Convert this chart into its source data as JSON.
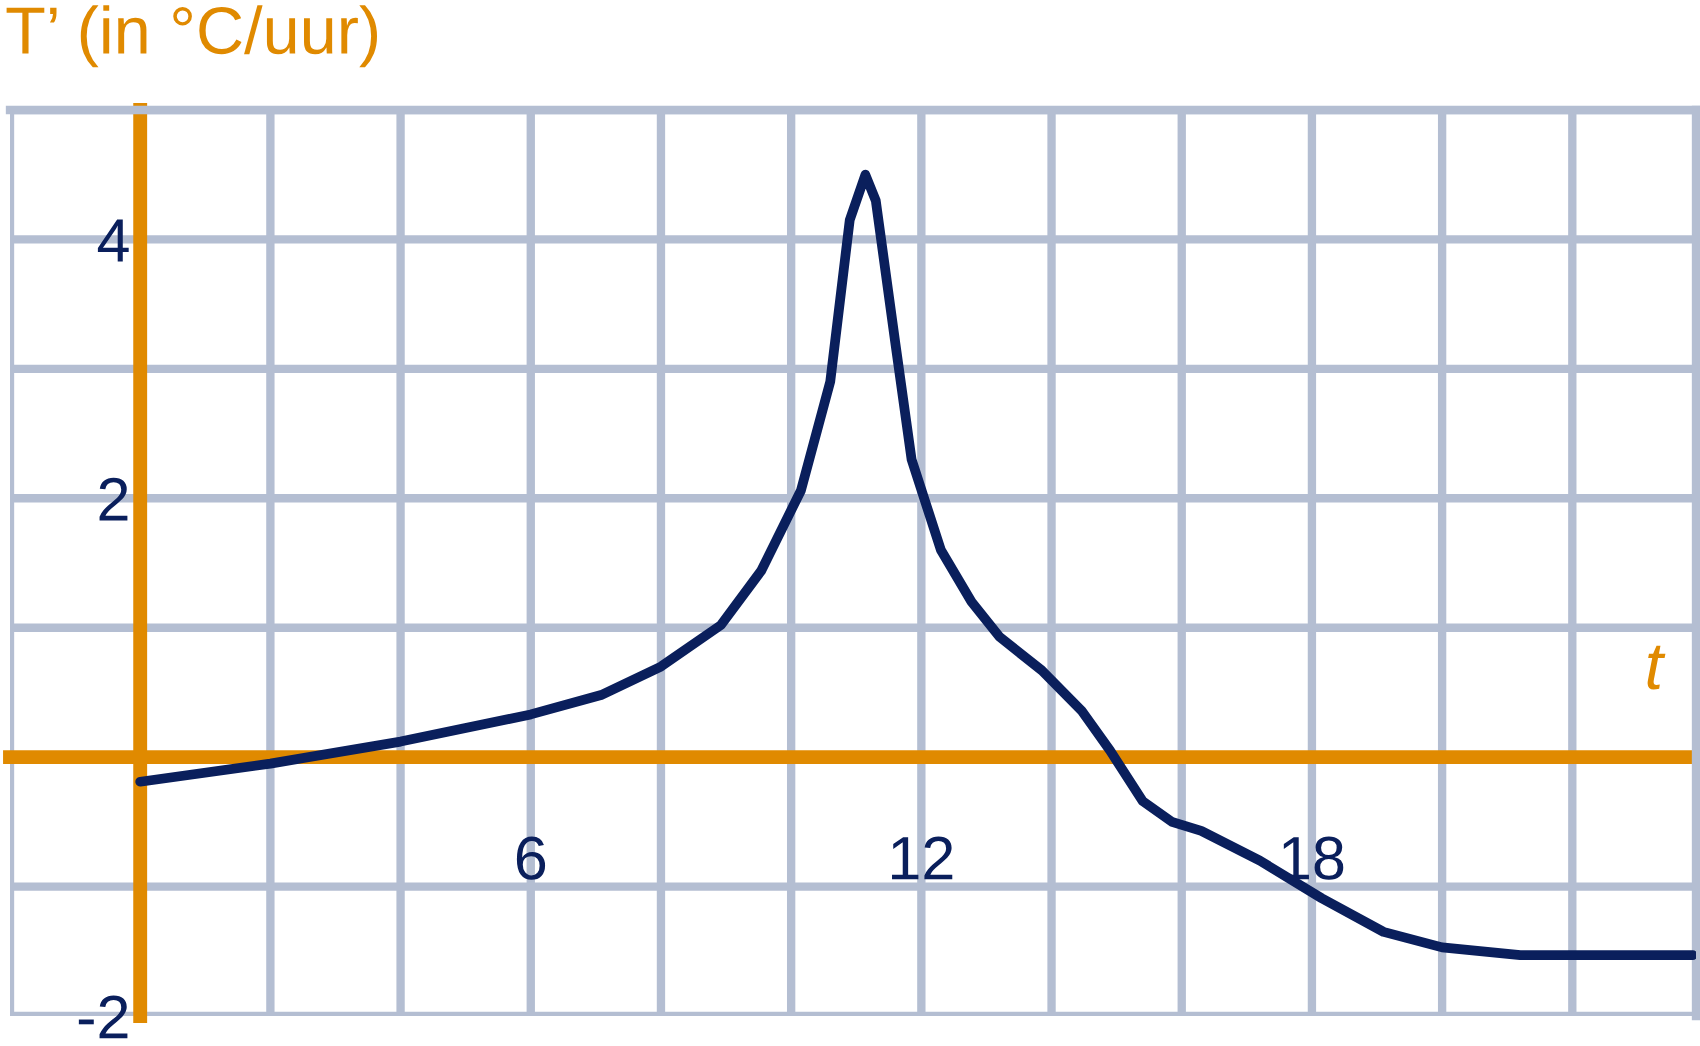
{
  "chart_data": {
    "type": "line",
    "xlabel": "t",
    "ylabel": "T’ (in °C/uur)",
    "x": [
      0,
      2,
      4,
      6,
      7.08,
      8,
      8.92,
      9.54,
      10.15,
      10.6,
      10.9,
      11.14,
      11.3,
      11.6,
      11.85,
      12.3,
      12.77,
      13.2,
      13.85,
      14.46,
      14.9,
      15.4,
      15.85,
      16.3,
      17.2,
      18.15,
      19.1,
      20,
      21.2,
      23.85
    ],
    "series": [
      {
        "color": "#0a1f5c",
        "values": [
          -0.19,
          -0.05,
          0.12,
          0.33,
          0.48,
          0.7,
          1.02,
          1.44,
          2.06,
          2.9,
          4.15,
          4.5,
          4.3,
          3.2,
          2.3,
          1.6,
          1.2,
          0.93,
          0.67,
          0.36,
          0.05,
          -0.34,
          -0.5,
          -0.57,
          -0.8,
          -1.09,
          -1.35,
          -1.47,
          -1.53,
          -1.53
        ]
      }
    ],
    "xlim": [
      -2,
      23.9
    ],
    "ylim": [
      -2,
      5
    ],
    "xticks": [
      {
        "value": -2,
        "label": null
      },
      {
        "value": 0,
        "label": null
      },
      {
        "value": 2,
        "label": null
      },
      {
        "value": 4,
        "label": null
      },
      6,
      {
        "value": 8,
        "label": null
      },
      {
        "value": 10,
        "label": null
      },
      12,
      {
        "value": 14,
        "label": null
      },
      {
        "value": 16,
        "label": null
      },
      18,
      {
        "value": 20,
        "label": null
      },
      {
        "value": 22,
        "label": null
      }
    ],
    "yticks": [
      -2,
      {
        "value": -1,
        "label": null
      },
      {
        "value": 0,
        "label": null
      },
      {
        "value": 1,
        "label": null
      },
      2,
      {
        "value": 3,
        "label": null
      },
      4,
      {
        "value": 5,
        "label": null
      }
    ],
    "grid": true,
    "marker": "none",
    "line_style": "solid"
  }
}
